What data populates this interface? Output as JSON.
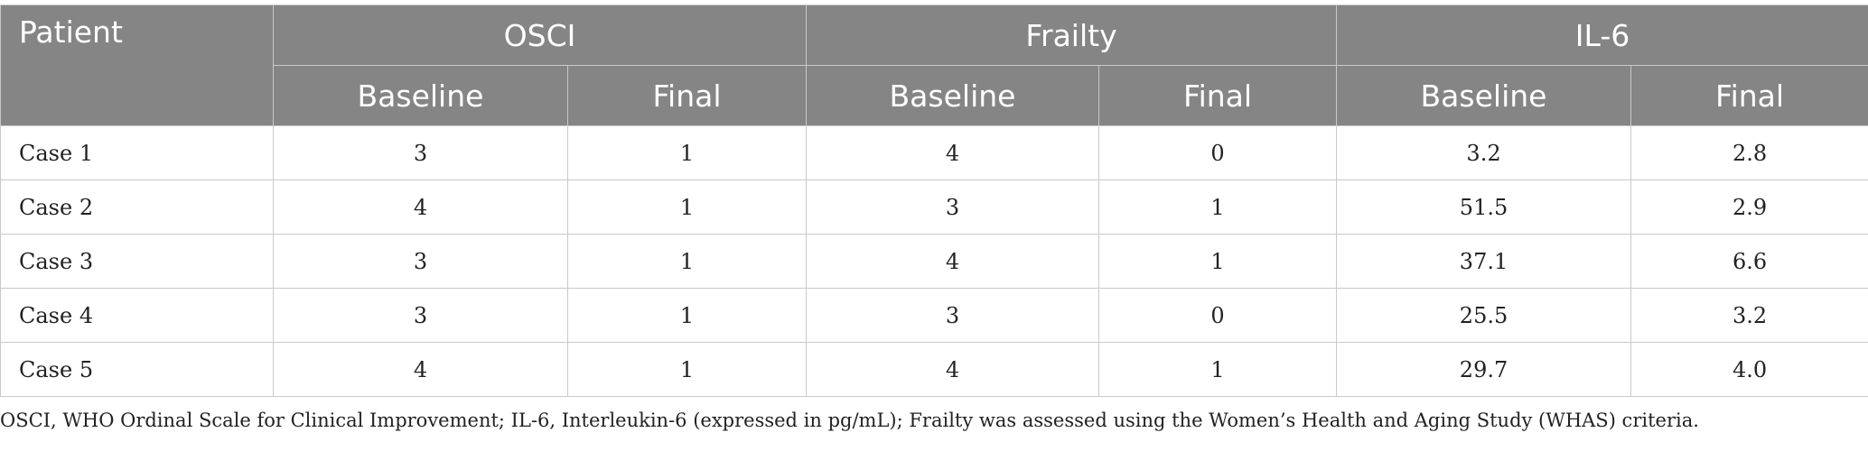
{
  "table": {
    "patient_header": "Patient",
    "groups": [
      "OSCI",
      "Frailty",
      "IL-6"
    ],
    "subheaders": [
      "Baseline",
      "Final",
      "Baseline",
      "Final",
      "Baseline",
      "Final"
    ],
    "rows": [
      {
        "patient": "Case 1",
        "values": [
          "3",
          "1",
          "4",
          "0",
          "3.2",
          "2.8"
        ]
      },
      {
        "patient": "Case 2",
        "values": [
          "4",
          "1",
          "3",
          "1",
          "51.5",
          "2.9"
        ]
      },
      {
        "patient": "Case 3",
        "values": [
          "3",
          "1",
          "4",
          "1",
          "37.1",
          "6.6"
        ]
      },
      {
        "patient": "Case 4",
        "values": [
          "3",
          "1",
          "3",
          "0",
          "25.5",
          "3.2"
        ]
      },
      {
        "patient": "Case 5",
        "values": [
          "4",
          "1",
          "4",
          "1",
          "29.7",
          "4.0"
        ]
      }
    ]
  },
  "footnote": "OSCI, WHO Ordinal Scale for Clinical Improvement; IL-6, Interleukin-6 (expressed in pg/mL); Frailty was assessed using the Women’s Health and Aging Study (WHAS) criteria.",
  "colors": {
    "header_bg": "#858585",
    "header_text": "#ffffff",
    "grid": "#c9c9c9"
  }
}
